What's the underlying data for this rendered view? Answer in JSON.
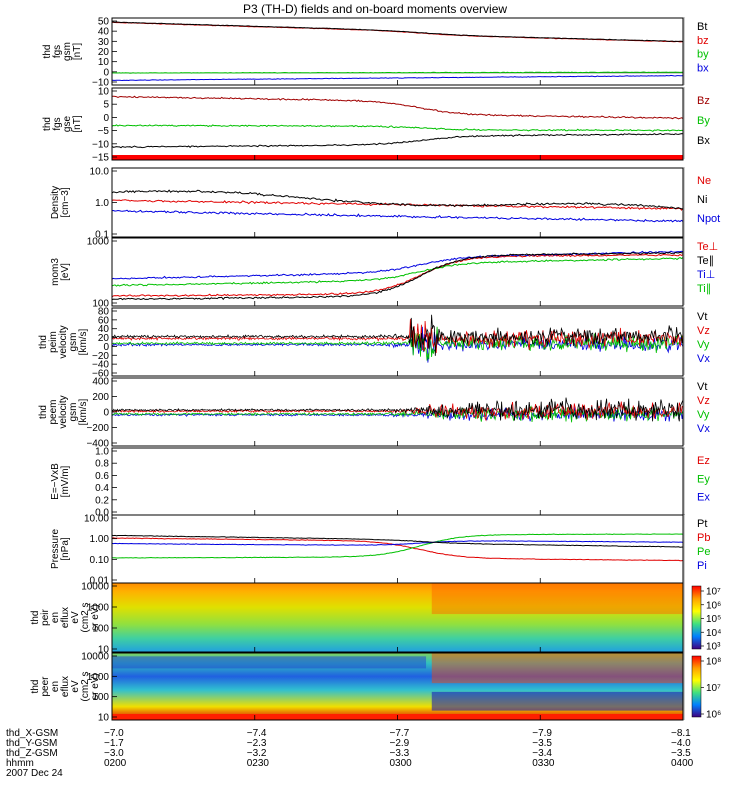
{
  "title": "P3 (TH-D) fields and on-board moments overview",
  "colors": {
    "black": "#000000",
    "red": "#e00000",
    "green": "#00c000",
    "blue": "#0000e0",
    "darkred": "#a00000"
  },
  "chart_data": [
    {
      "id": "fgs_gsm",
      "type": "line",
      "ylabel": [
        "thd",
        "fgs",
        "gsm",
        "[nT]"
      ],
      "ticks": [
        "50",
        "40",
        "30",
        "20",
        "10",
        "0",
        "−10"
      ],
      "series": [
        {
          "name": "Bt",
          "color": "black"
        },
        {
          "name": "bz",
          "color": "red"
        },
        {
          "name": "by",
          "color": "green"
        },
        {
          "name": "bx",
          "color": "blue"
        }
      ]
    },
    {
      "id": "fgs_gse",
      "type": "line",
      "ylabel": [
        "thd",
        "fgs",
        "gse",
        "[nT]"
      ],
      "ticks": [
        "10",
        "5",
        "0",
        "−5",
        "−10",
        "−15"
      ],
      "series": [
        {
          "name": "Bz",
          "color": "darkred"
        },
        {
          "name": "By",
          "color": "green"
        },
        {
          "name": "Bx",
          "color": "black"
        }
      ]
    },
    {
      "id": "density",
      "type": "line",
      "scale": "log",
      "ylabel": [
        "Density",
        "[cm−3]"
      ],
      "ticks": [
        "10.0",
        "1.0",
        "0.1"
      ],
      "series": [
        {
          "name": "Ne",
          "color": "red"
        },
        {
          "name": "Ni",
          "color": "black"
        },
        {
          "name": "Npot",
          "color": "blue"
        }
      ]
    },
    {
      "id": "temp",
      "type": "line",
      "scale": "log",
      "ylabel": [
        "mom3",
        "[eV]"
      ],
      "ticks": [
        "1000",
        "100"
      ],
      "series": [
        {
          "name": "Te⊥",
          "color": "red"
        },
        {
          "name": "Te∥",
          "color": "black"
        },
        {
          "name": "Ti⊥",
          "color": "blue"
        },
        {
          "name": "Ti∥",
          "color": "green"
        }
      ]
    },
    {
      "id": "peim_vel",
      "type": "line",
      "ylabel": [
        "thd",
        "peim",
        "velocity",
        "gsm",
        "[km/s]"
      ],
      "ticks": [
        "80",
        "60",
        "40",
        "20",
        "0",
        "−20",
        "−40",
        "−60"
      ],
      "series": [
        {
          "name": "Vt",
          "color": "black"
        },
        {
          "name": "Vz",
          "color": "red"
        },
        {
          "name": "Vy",
          "color": "green"
        },
        {
          "name": "Vx",
          "color": "blue"
        }
      ]
    },
    {
      "id": "peem_vel",
      "type": "line",
      "ylabel": [
        "thd",
        "peem",
        "velocity",
        "gsm",
        "[km/s]"
      ],
      "ticks": [
        "400",
        "200",
        "0",
        "−200",
        "−400"
      ],
      "series": [
        {
          "name": "Vt",
          "color": "black"
        },
        {
          "name": "Vz",
          "color": "red"
        },
        {
          "name": "Vy",
          "color": "green"
        },
        {
          "name": "Vx",
          "color": "blue"
        }
      ]
    },
    {
      "id": "efield",
      "type": "line",
      "ylabel": [
        "E=−VxB",
        "[mV/m]"
      ],
      "ticks": [
        "1.0",
        "0.8",
        "0.6",
        "0.4",
        "0.2",
        "0.0"
      ],
      "series": [
        {
          "name": "Ez",
          "color": "red"
        },
        {
          "name": "Ey",
          "color": "green"
        },
        {
          "name": "Ex",
          "color": "blue"
        }
      ]
    },
    {
      "id": "pressure",
      "type": "line",
      "scale": "log",
      "ylabel": [
        "Pressure",
        "[nPa]"
      ],
      "ticks": [
        "10.00",
        "1.00",
        "0.10",
        "0.01"
      ],
      "series": [
        {
          "name": "Pt",
          "color": "black"
        },
        {
          "name": "Pb",
          "color": "red"
        },
        {
          "name": "Pe",
          "color": "green"
        },
        {
          "name": "Pi",
          "color": "blue"
        }
      ]
    },
    {
      "id": "peir_spec",
      "type": "heatmap",
      "ylabel": [
        "thd",
        "peir",
        "en",
        "eflux",
        "eV",
        "(cm2 s",
        "sr eV)"
      ],
      "ticks": [
        "10000",
        "1000",
        "100",
        "10"
      ],
      "colorbar": [
        "10⁷",
        "10⁶",
        "10⁵",
        "10⁴",
        "10³"
      ]
    },
    {
      "id": "peer_spec",
      "type": "heatmap",
      "ylabel": [
        "thd",
        "peer",
        "en",
        "eflux",
        "eV",
        "(cm2 s",
        "sr eV)"
      ],
      "ticks": [
        "10000",
        "1000",
        "100",
        "10"
      ],
      "colorbar": [
        "10⁸",
        "10⁷",
        "10⁶"
      ]
    }
  ],
  "xaxis": {
    "rows": [
      {
        "label": "thd_X-GSM",
        "values": [
          "−7.0",
          "−7.4",
          "−7.7",
          "−7.9",
          "−8.1"
        ]
      },
      {
        "label": "thd_Y-GSM",
        "values": [
          "−1.7",
          "−2.3",
          "−2.9",
          "−3.5",
          "−4.0"
        ]
      },
      {
        "label": "thd_Z-GSM",
        "values": [
          "−3.0",
          "−3.2",
          "−3.3",
          "−3.4",
          "−3.5"
        ]
      },
      {
        "label": "hhmm",
        "values": [
          "0200",
          "0230",
          "0300",
          "0330",
          "0400"
        ]
      }
    ],
    "date": "2007 Dec 24"
  }
}
